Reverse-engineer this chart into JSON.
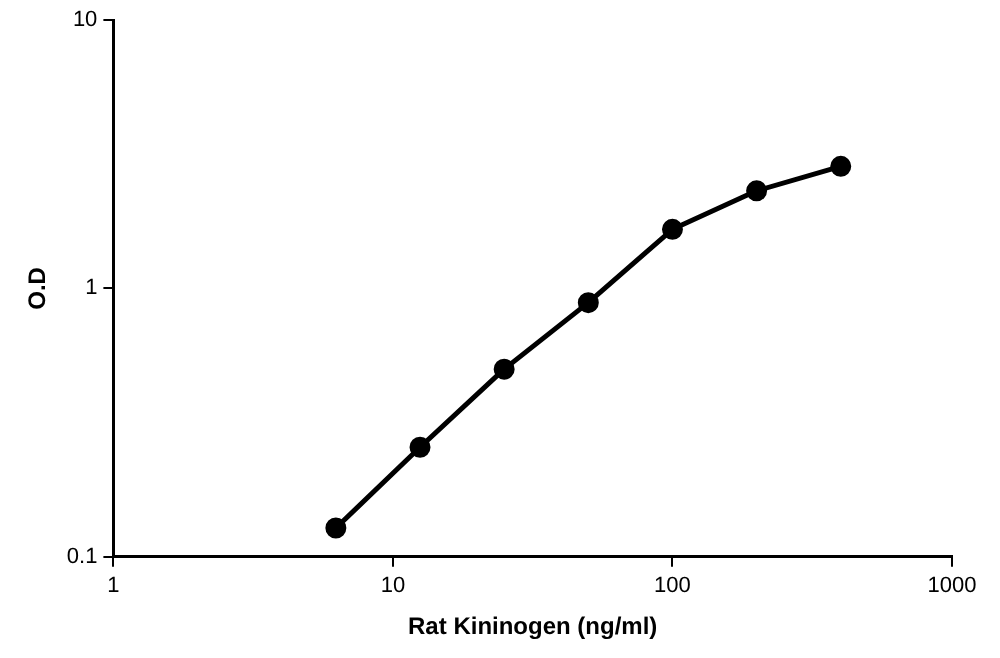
{
  "chart_data": {
    "type": "line",
    "xlabel": "Rat Kininogen (ng/ml)",
    "ylabel": "O.D",
    "x": [
      6.25,
      12.5,
      25,
      50,
      100,
      200,
      400
    ],
    "series": [
      {
        "color": "#000000",
        "values": [
          0.128,
          0.256,
          0.5,
          0.885,
          1.66,
          2.31,
          2.85
        ]
      }
    ],
    "log": "xy",
    "xlim": [
      1,
      1000
    ],
    "ylim": [
      0.1,
      10
    ],
    "xticks": [
      1,
      10,
      100,
      1000
    ],
    "yticks": [
      0.1,
      1,
      10
    ],
    "grid": false,
    "legend": false,
    "marker": "circle",
    "line_style": "solid"
  }
}
